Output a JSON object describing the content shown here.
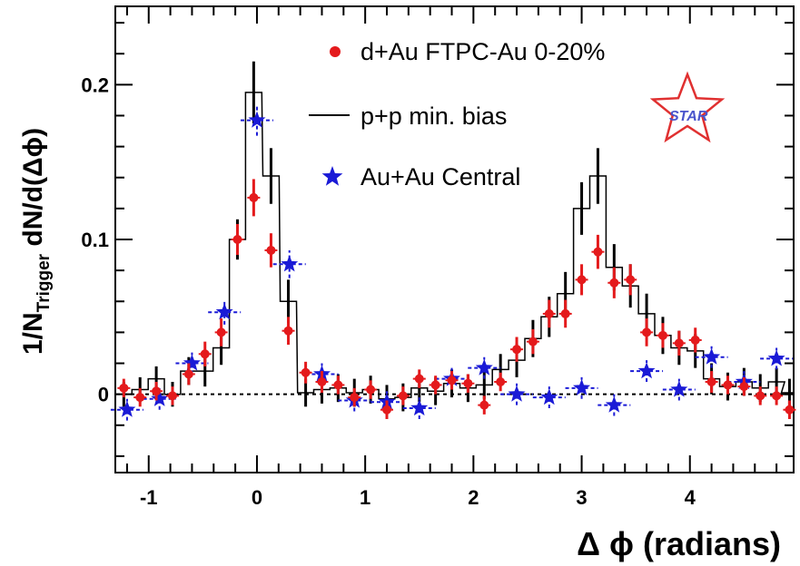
{
  "chart_data": {
    "type": "scatter",
    "xlabel": "Δ ϕ (radians)",
    "ylabel_main": "1/N",
    "ylabel_sub": "Trigger",
    "ylabel_tail": " dN/d(Δϕ)",
    "xlim": [
      -1.3,
      4.95
    ],
    "ylim": [
      -0.05,
      0.25
    ],
    "x_ticks": [
      -1,
      0,
      1,
      2,
      3,
      4
    ],
    "x_tick_labels": [
      "-1",
      "0",
      "1",
      "2",
      "3",
      "4"
    ],
    "y_ticks": [
      0,
      0.1,
      0.2
    ],
    "y_tick_labels": [
      "0",
      "0.1",
      "0.2"
    ],
    "reference_line_y": 0,
    "legend_position": "top-center",
    "logo": "STAR",
    "series": [
      {
        "name": "d+Au FTPC-Au 0-20%",
        "marker": "circle",
        "color": "#e41a1c",
        "points": [
          {
            "x": -1.23,
            "y": 0.004,
            "err": 0.006
          },
          {
            "x": -1.08,
            "y": -0.002,
            "err": 0.006
          },
          {
            "x": -0.93,
            "y": 0.002,
            "err": 0.006
          },
          {
            "x": -0.78,
            "y": -0.001,
            "err": 0.006
          },
          {
            "x": -0.63,
            "y": 0.013,
            "err": 0.007
          },
          {
            "x": -0.48,
            "y": 0.026,
            "err": 0.008
          },
          {
            "x": -0.33,
            "y": 0.04,
            "err": 0.009
          },
          {
            "x": -0.18,
            "y": 0.1,
            "err": 0.01
          },
          {
            "x": -0.03,
            "y": 0.127,
            "err": 0.012
          },
          {
            "x": 0.13,
            "y": 0.093,
            "err": 0.011
          },
          {
            "x": 0.29,
            "y": 0.041,
            "err": 0.009
          },
          {
            "x": 0.45,
            "y": 0.014,
            "err": 0.007
          },
          {
            "x": 0.6,
            "y": 0.008,
            "err": 0.007
          },
          {
            "x": 0.75,
            "y": 0.006,
            "err": 0.006
          },
          {
            "x": 0.9,
            "y": -0.002,
            "err": 0.006
          },
          {
            "x": 1.05,
            "y": 0.003,
            "err": 0.006
          },
          {
            "x": 1.2,
            "y": -0.01,
            "err": 0.006
          },
          {
            "x": 1.35,
            "y": -0.001,
            "err": 0.006
          },
          {
            "x": 1.5,
            "y": 0.01,
            "err": 0.006
          },
          {
            "x": 1.65,
            "y": 0.006,
            "err": 0.006
          },
          {
            "x": 1.8,
            "y": 0.009,
            "err": 0.006
          },
          {
            "x": 1.95,
            "y": 0.007,
            "err": 0.006
          },
          {
            "x": 2.1,
            "y": -0.007,
            "err": 0.006
          },
          {
            "x": 2.25,
            "y": 0.008,
            "err": 0.006
          },
          {
            "x": 2.4,
            "y": 0.029,
            "err": 0.008
          },
          {
            "x": 2.55,
            "y": 0.034,
            "err": 0.008
          },
          {
            "x": 2.7,
            "y": 0.052,
            "err": 0.009
          },
          {
            "x": 2.85,
            "y": 0.052,
            "err": 0.009
          },
          {
            "x": 3.0,
            "y": 0.074,
            "err": 0.01
          },
          {
            "x": 3.15,
            "y": 0.092,
            "err": 0.011
          },
          {
            "x": 3.3,
            "y": 0.072,
            "err": 0.01
          },
          {
            "x": 3.45,
            "y": 0.074,
            "err": 0.01
          },
          {
            "x": 3.6,
            "y": 0.04,
            "err": 0.009
          },
          {
            "x": 3.75,
            "y": 0.038,
            "err": 0.008
          },
          {
            "x": 3.9,
            "y": 0.033,
            "err": 0.008
          },
          {
            "x": 4.05,
            "y": 0.035,
            "err": 0.008
          },
          {
            "x": 4.2,
            "y": 0.008,
            "err": 0.007
          },
          {
            "x": 4.35,
            "y": 0.006,
            "err": 0.006
          },
          {
            "x": 4.5,
            "y": 0.005,
            "err": 0.006
          },
          {
            "x": 4.65,
            "y": -0.001,
            "err": 0.006
          },
          {
            "x": 4.8,
            "y": -0.001,
            "err": 0.006
          },
          {
            "x": 4.92,
            "y": -0.01,
            "err": 0.006
          }
        ]
      },
      {
        "name": "p+p min. bias",
        "marker": "histogram",
        "color": "#000000",
        "points": [
          {
            "x": -1.23,
            "y": 0.0,
            "err": 0.008
          },
          {
            "x": -1.08,
            "y": 0.003,
            "err": 0.008
          },
          {
            "x": -0.93,
            "y": 0.01,
            "err": 0.008
          },
          {
            "x": -0.78,
            "y": 0.0,
            "err": 0.008
          },
          {
            "x": -0.63,
            "y": 0.015,
            "err": 0.009
          },
          {
            "x": -0.48,
            "y": 0.015,
            "err": 0.01
          },
          {
            "x": -0.33,
            "y": 0.03,
            "err": 0.011
          },
          {
            "x": -0.18,
            "y": 0.1,
            "err": 0.013
          },
          {
            "x": -0.03,
            "y": 0.195,
            "err": 0.02
          },
          {
            "x": 0.13,
            "y": 0.141,
            "err": 0.018
          },
          {
            "x": 0.29,
            "y": 0.06,
            "err": 0.014
          },
          {
            "x": 0.45,
            "y": 0.001,
            "err": 0.009
          },
          {
            "x": 0.6,
            "y": 0.003,
            "err": 0.009
          },
          {
            "x": 0.75,
            "y": 0.004,
            "err": 0.009
          },
          {
            "x": 0.9,
            "y": 0.001,
            "err": 0.009
          },
          {
            "x": 1.05,
            "y": 0.003,
            "err": 0.009
          },
          {
            "x": 1.2,
            "y": -0.003,
            "err": 0.009
          },
          {
            "x": 1.35,
            "y": -0.002,
            "err": 0.009
          },
          {
            "x": 1.5,
            "y": 0.004,
            "err": 0.009
          },
          {
            "x": 1.65,
            "y": 0.002,
            "err": 0.009
          },
          {
            "x": 1.8,
            "y": 0.007,
            "err": 0.009
          },
          {
            "x": 1.95,
            "y": 0.004,
            "err": 0.009
          },
          {
            "x": 2.1,
            "y": 0.006,
            "err": 0.009
          },
          {
            "x": 2.25,
            "y": 0.016,
            "err": 0.01
          },
          {
            "x": 2.4,
            "y": 0.022,
            "err": 0.011
          },
          {
            "x": 2.55,
            "y": 0.036,
            "err": 0.012
          },
          {
            "x": 2.7,
            "y": 0.05,
            "err": 0.013
          },
          {
            "x": 2.85,
            "y": 0.065,
            "err": 0.014
          },
          {
            "x": 3.0,
            "y": 0.12,
            "err": 0.017
          },
          {
            "x": 3.15,
            "y": 0.141,
            "err": 0.018
          },
          {
            "x": 3.3,
            "y": 0.082,
            "err": 0.015
          },
          {
            "x": 3.45,
            "y": 0.07,
            "err": 0.014
          },
          {
            "x": 3.6,
            "y": 0.052,
            "err": 0.013
          },
          {
            "x": 3.75,
            "y": 0.038,
            "err": 0.012
          },
          {
            "x": 3.9,
            "y": 0.03,
            "err": 0.011
          },
          {
            "x": 4.05,
            "y": 0.028,
            "err": 0.011
          },
          {
            "x": 4.2,
            "y": 0.01,
            "err": 0.01
          },
          {
            "x": 4.35,
            "y": 0.005,
            "err": 0.009
          },
          {
            "x": 4.5,
            "y": 0.008,
            "err": 0.009
          },
          {
            "x": 4.65,
            "y": 0.004,
            "err": 0.009
          },
          {
            "x": 4.8,
            "y": 0.008,
            "err": 0.009
          },
          {
            "x": 4.92,
            "y": 0.001,
            "err": 0.009
          }
        ]
      },
      {
        "name": "Au+Au Central",
        "marker": "star",
        "color": "#1a1ad6",
        "points": [
          {
            "x": -1.2,
            "y": -0.01,
            "err": 0.007
          },
          {
            "x": -0.9,
            "y": -0.003,
            "err": 0.007
          },
          {
            "x": -0.6,
            "y": 0.02,
            "err": 0.007
          },
          {
            "x": -0.3,
            "y": 0.053,
            "err": 0.008
          },
          {
            "x": 0.0,
            "y": 0.177,
            "err": 0.01
          },
          {
            "x": 0.3,
            "y": 0.084,
            "err": 0.009
          },
          {
            "x": 0.6,
            "y": 0.013,
            "err": 0.007
          },
          {
            "x": 0.9,
            "y": -0.004,
            "err": 0.007
          },
          {
            "x": 1.2,
            "y": -0.005,
            "err": 0.007
          },
          {
            "x": 1.5,
            "y": -0.009,
            "err": 0.007
          },
          {
            "x": 1.8,
            "y": 0.01,
            "err": 0.007
          },
          {
            "x": 2.1,
            "y": 0.017,
            "err": 0.007
          },
          {
            "x": 2.4,
            "y": 0.0,
            "err": 0.007
          },
          {
            "x": 2.7,
            "y": -0.002,
            "err": 0.007
          },
          {
            "x": 3.0,
            "y": 0.004,
            "err": 0.007
          },
          {
            "x": 3.3,
            "y": -0.007,
            "err": 0.007
          },
          {
            "x": 3.6,
            "y": 0.015,
            "err": 0.007
          },
          {
            "x": 3.9,
            "y": 0.003,
            "err": 0.007
          },
          {
            "x": 4.2,
            "y": 0.024,
            "err": 0.007
          },
          {
            "x": 4.5,
            "y": 0.008,
            "err": 0.007
          },
          {
            "x": 4.8,
            "y": 0.023,
            "err": 0.007
          }
        ]
      }
    ]
  }
}
